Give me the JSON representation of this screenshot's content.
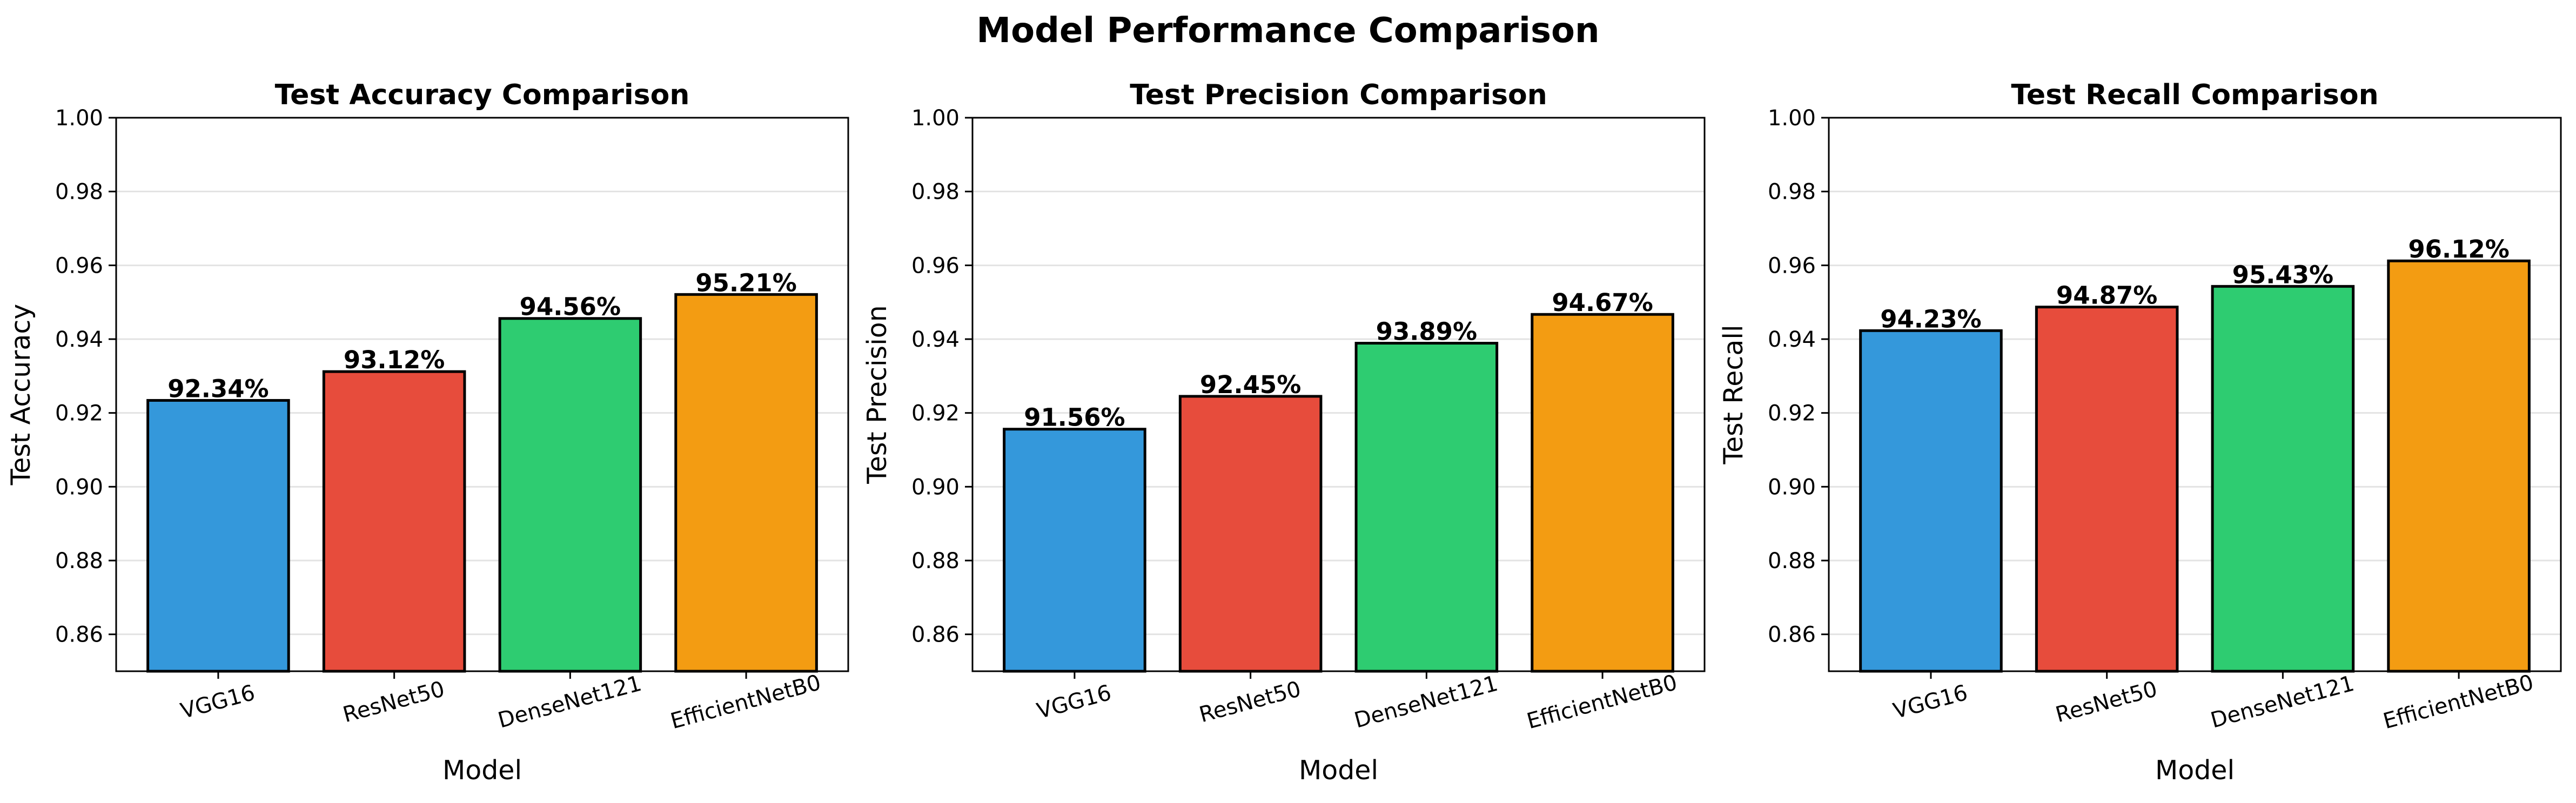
{
  "title": "Model Performance Comparison",
  "colors": [
    "#3498db",
    "#e74c3c",
    "#2ecc71",
    "#f39c12"
  ],
  "chart_data": [
    {
      "type": "bar",
      "title": "Test Accuracy Comparison",
      "xlabel": "Model",
      "ylabel": "Test Accuracy",
      "categories": [
        "VGG16",
        "ResNet50",
        "DenseNet121",
        "EfficientNetB0"
      ],
      "values": [
        0.9234,
        0.9312,
        0.9456,
        0.9521
      ],
      "value_labels": [
        "92.34%",
        "93.12%",
        "94.56%",
        "95.21%"
      ],
      "ylim": [
        0.85,
        1.0
      ],
      "yticks": [
        "0.86",
        "0.88",
        "0.90",
        "0.92",
        "0.94",
        "0.96",
        "0.98",
        "1.00"
      ],
      "grid": "y"
    },
    {
      "type": "bar",
      "title": "Test Precision Comparison",
      "xlabel": "Model",
      "ylabel": "Test Precision",
      "categories": [
        "VGG16",
        "ResNet50",
        "DenseNet121",
        "EfficientNetB0"
      ],
      "values": [
        0.9156,
        0.9245,
        0.9389,
        0.9467
      ],
      "value_labels": [
        "91.56%",
        "92.45%",
        "93.89%",
        "94.67%"
      ],
      "ylim": [
        0.85,
        1.0
      ],
      "yticks": [
        "0.86",
        "0.88",
        "0.90",
        "0.92",
        "0.94",
        "0.96",
        "0.98",
        "1.00"
      ],
      "grid": "y"
    },
    {
      "type": "bar",
      "title": "Test Recall Comparison",
      "xlabel": "Model",
      "ylabel": "Test Recall",
      "categories": [
        "VGG16",
        "ResNet50",
        "DenseNet121",
        "EfficientNetB0"
      ],
      "values": [
        0.9423,
        0.9487,
        0.9543,
        0.9612
      ],
      "value_labels": [
        "94.23%",
        "94.87%",
        "95.43%",
        "96.12%"
      ],
      "ylim": [
        0.85,
        1.0
      ],
      "yticks": [
        "0.86",
        "0.88",
        "0.90",
        "0.92",
        "0.94",
        "0.96",
        "0.98",
        "1.00"
      ],
      "grid": "y"
    }
  ]
}
